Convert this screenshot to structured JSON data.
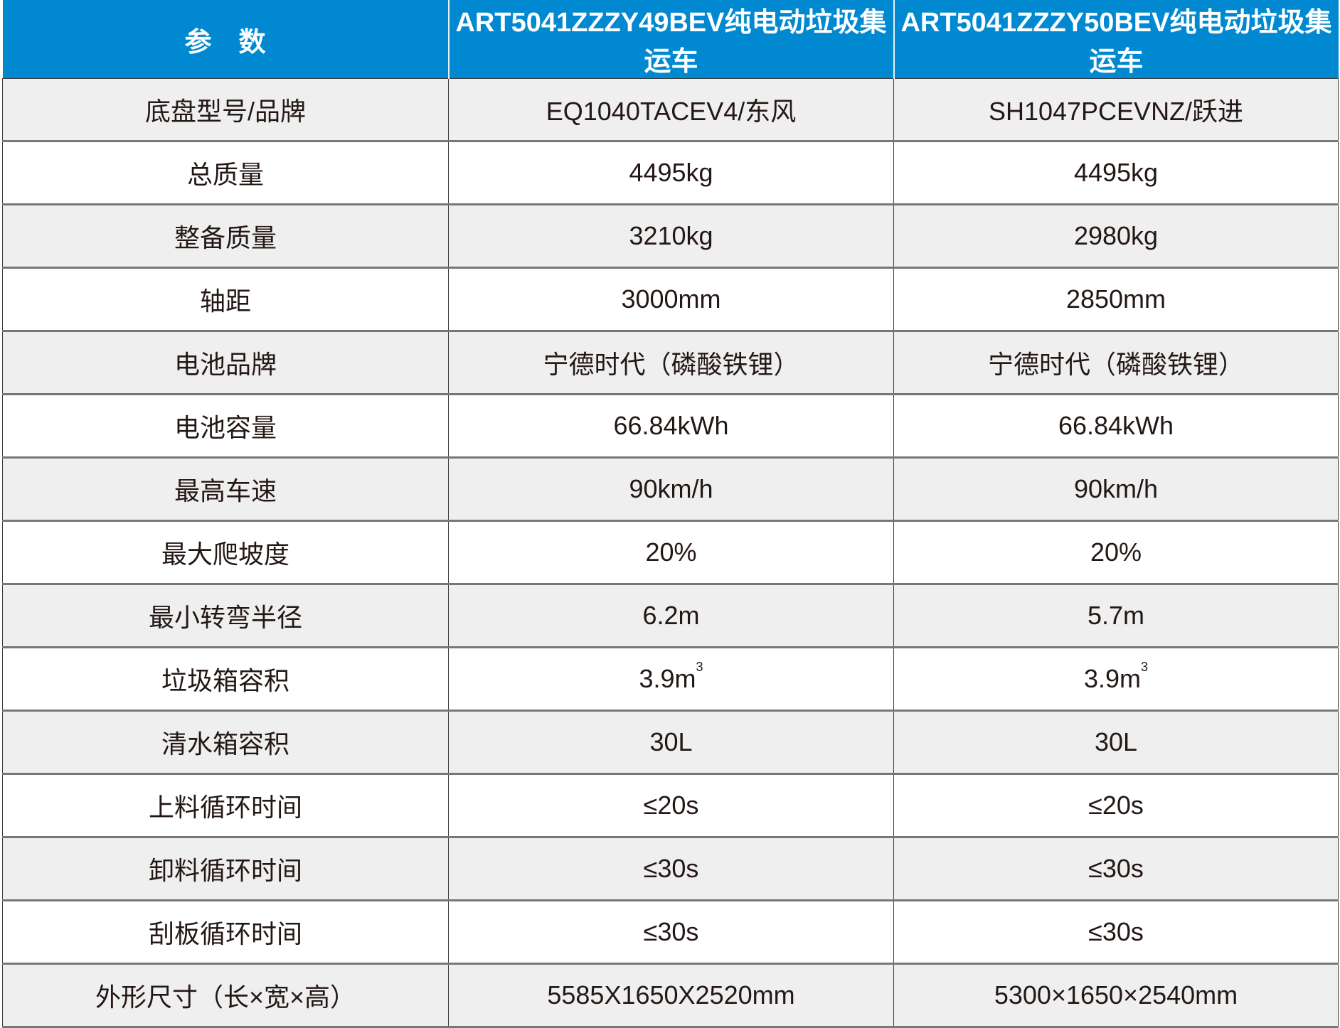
{
  "header": [
    "参　数",
    "ART5041ZZZY49BEV纯电动垃圾集运车",
    "ART5041ZZZY50BEV纯电动垃圾集运车"
  ],
  "header_color": "#0089d0",
  "rows": [
    {
      "param": "底盘型号/品牌",
      "a": "EQ1040TACEV4/东风",
      "b": "SH1047PCEVNZ/跃进"
    },
    {
      "param": "总质量",
      "a": "4495kg",
      "b": "4495kg"
    },
    {
      "param": "整备质量",
      "a": "3210kg",
      "b": "2980kg"
    },
    {
      "param": "轴距",
      "a": "3000mm",
      "b": "2850mm"
    },
    {
      "param": "电池品牌",
      "a": "宁德时代（磷酸铁锂）",
      "b": "宁德时代（磷酸铁锂）"
    },
    {
      "param": "电池容量",
      "a": "66.84kWh",
      "b": "66.84kWh"
    },
    {
      "param": "最高车速",
      "a": "90km/h",
      "b": "90km/h"
    },
    {
      "param": "最大爬坡度",
      "a": "20%",
      "b": "20%"
    },
    {
      "param": "最小转弯半径",
      "a": "6.2m",
      "b": "5.7m"
    },
    {
      "param": "垃圾箱容积",
      "a": "3.9m",
      "a_sup": "3",
      "b": "3.9m",
      "b_sup": "3"
    },
    {
      "param": "清水箱容积",
      "a": "30L",
      "b": "30L"
    },
    {
      "param": "上料循环时间",
      "a": "≤20s",
      "b": "≤20s"
    },
    {
      "param": "卸料循环时间",
      "a": "≤30s",
      "b": "≤30s"
    },
    {
      "param": "刮板循环时间",
      "a": "≤30s",
      "b": "≤30s"
    },
    {
      "param": "外形尺寸（长×宽×高）",
      "a": "5585X1650X2520mm",
      "b": "5300×1650×2540mm"
    }
  ]
}
